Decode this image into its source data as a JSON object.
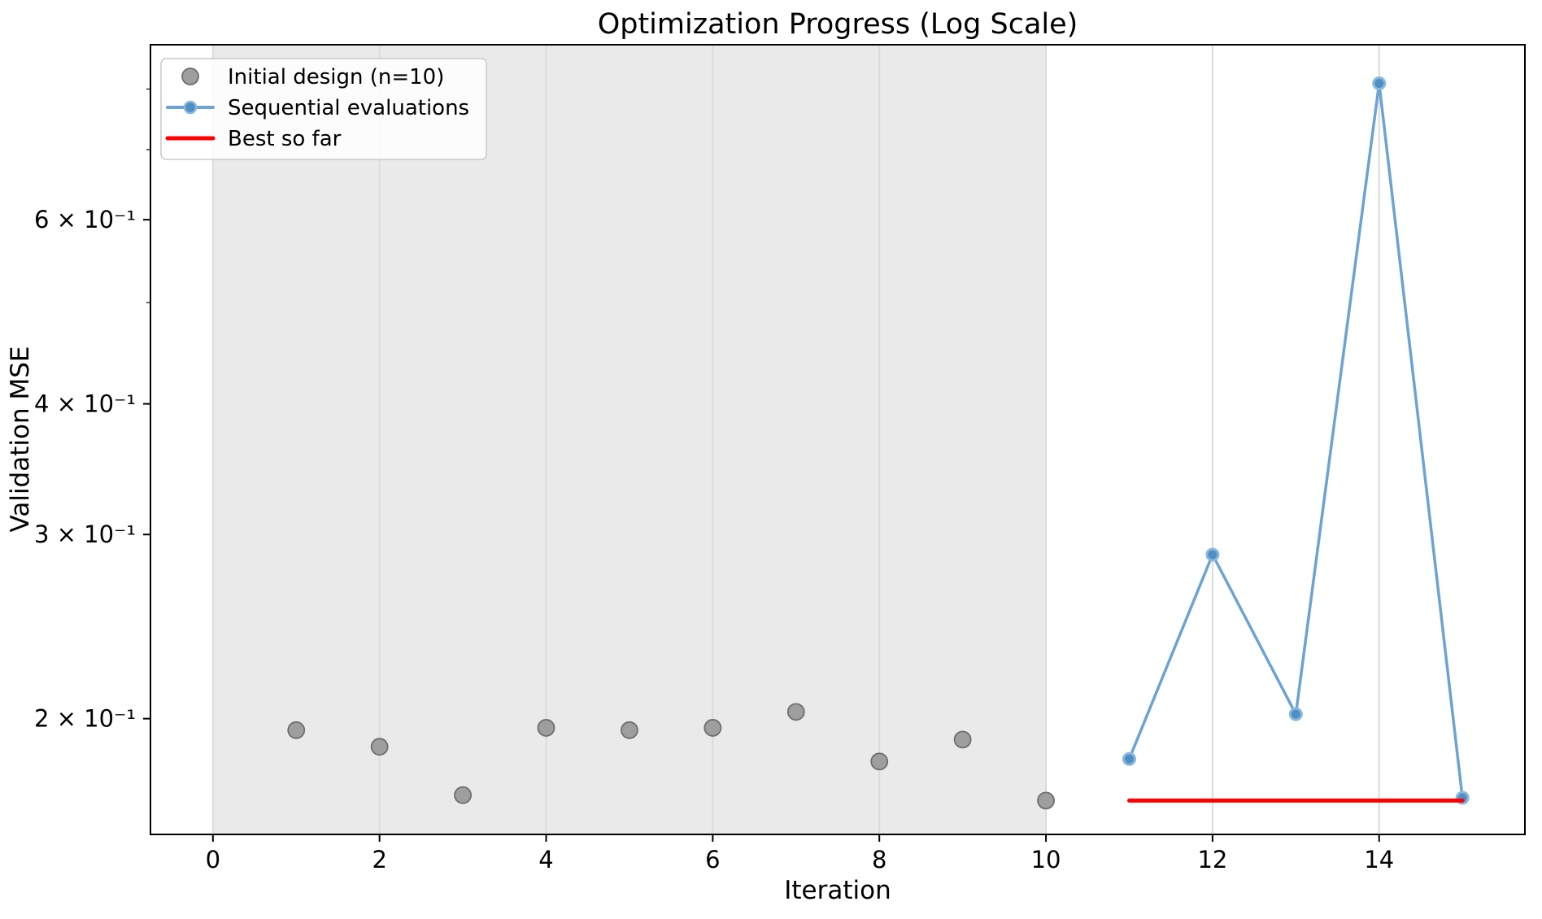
{
  "chart_data": {
    "type": "scatter",
    "title": "Optimization Progress (Log Scale)",
    "axes": {
      "xlabel": "Iteration",
      "ylabel": "Validation MSE",
      "xlim": [
        -0.75,
        15.75
      ],
      "ylim": [
        0.155,
        0.882
      ],
      "yscale": "log",
      "x_ticks": [
        0,
        2,
        4,
        6,
        8,
        10,
        12,
        14
      ],
      "y_major_ticks": [
        {
          "value": 0.6,
          "label": "6 × 10⁻¹"
        },
        {
          "value": 0.4,
          "label": "4 × 10⁻¹"
        },
        {
          "value": 0.3,
          "label": "3 × 10⁻¹"
        },
        {
          "value": 0.2,
          "label": "2 × 10⁻¹"
        }
      ],
      "y_minor_ticks": [
        0.5,
        0.7,
        0.8
      ],
      "grid": "vertical-major",
      "grid_color": "#dbdbdb",
      "legend_position": "upper-left"
    },
    "shaded_region": {
      "x_start": 0,
      "x_end": 10,
      "color": "#eaeaea"
    },
    "series": [
      {
        "name": "Initial design (n=10)",
        "type": "scatter",
        "marker_fill": "#9e9e9e",
        "marker_edge": "#6e6e6e",
        "x": [
          1,
          2,
          3,
          4,
          5,
          6,
          7,
          8,
          9,
          10
        ],
        "y": [
          0.195,
          0.188,
          0.169,
          0.196,
          0.195,
          0.196,
          0.203,
          0.182,
          0.191,
          0.167
        ]
      },
      {
        "name": "Sequential evaluations",
        "type": "line+marker",
        "color": "#6da3d1",
        "marker_fill": "#4e90c5",
        "marker_edge": "#8ab7dc",
        "x": [
          11,
          12,
          13,
          14,
          15
        ],
        "y": [
          0.183,
          0.287,
          0.202,
          0.81,
          0.168
        ]
      },
      {
        "name": "Best so far",
        "type": "line",
        "color": "#ff0000",
        "x": [
          11,
          15
        ],
        "y": [
          0.167,
          0.167
        ]
      }
    ]
  }
}
